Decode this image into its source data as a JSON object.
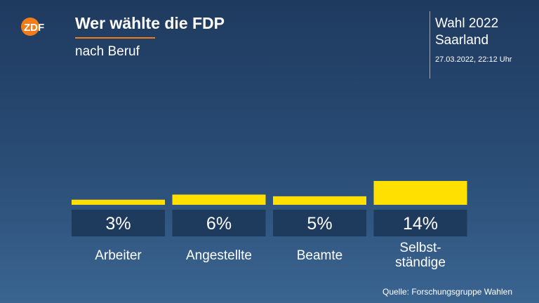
{
  "header": {
    "logo_text": "ZDF",
    "title": "Wer wählte die FDP",
    "subtitle": "nach Beruf",
    "meta_title": "Wahl 2022",
    "meta_subtitle": "Saarland",
    "timestamp": "27.03.2022, 22:12 Uhr"
  },
  "colors": {
    "accent": "#f07d19",
    "bar": "#ffe000",
    "label_box": "#1e3a5c"
  },
  "chart_data": {
    "type": "bar",
    "categories": [
      "Arbeiter",
      "Angestellte",
      "Beamte",
      "Selbst-\nständige"
    ],
    "series": [
      {
        "values": [
          3,
          6,
          5,
          14
        ],
        "labels": [
          "3%",
          "6%",
          "5%",
          "14%"
        ]
      }
    ],
    "unit": "%"
  },
  "footer": {
    "source": "Quelle: Forschungsgruppe Wahlen"
  }
}
